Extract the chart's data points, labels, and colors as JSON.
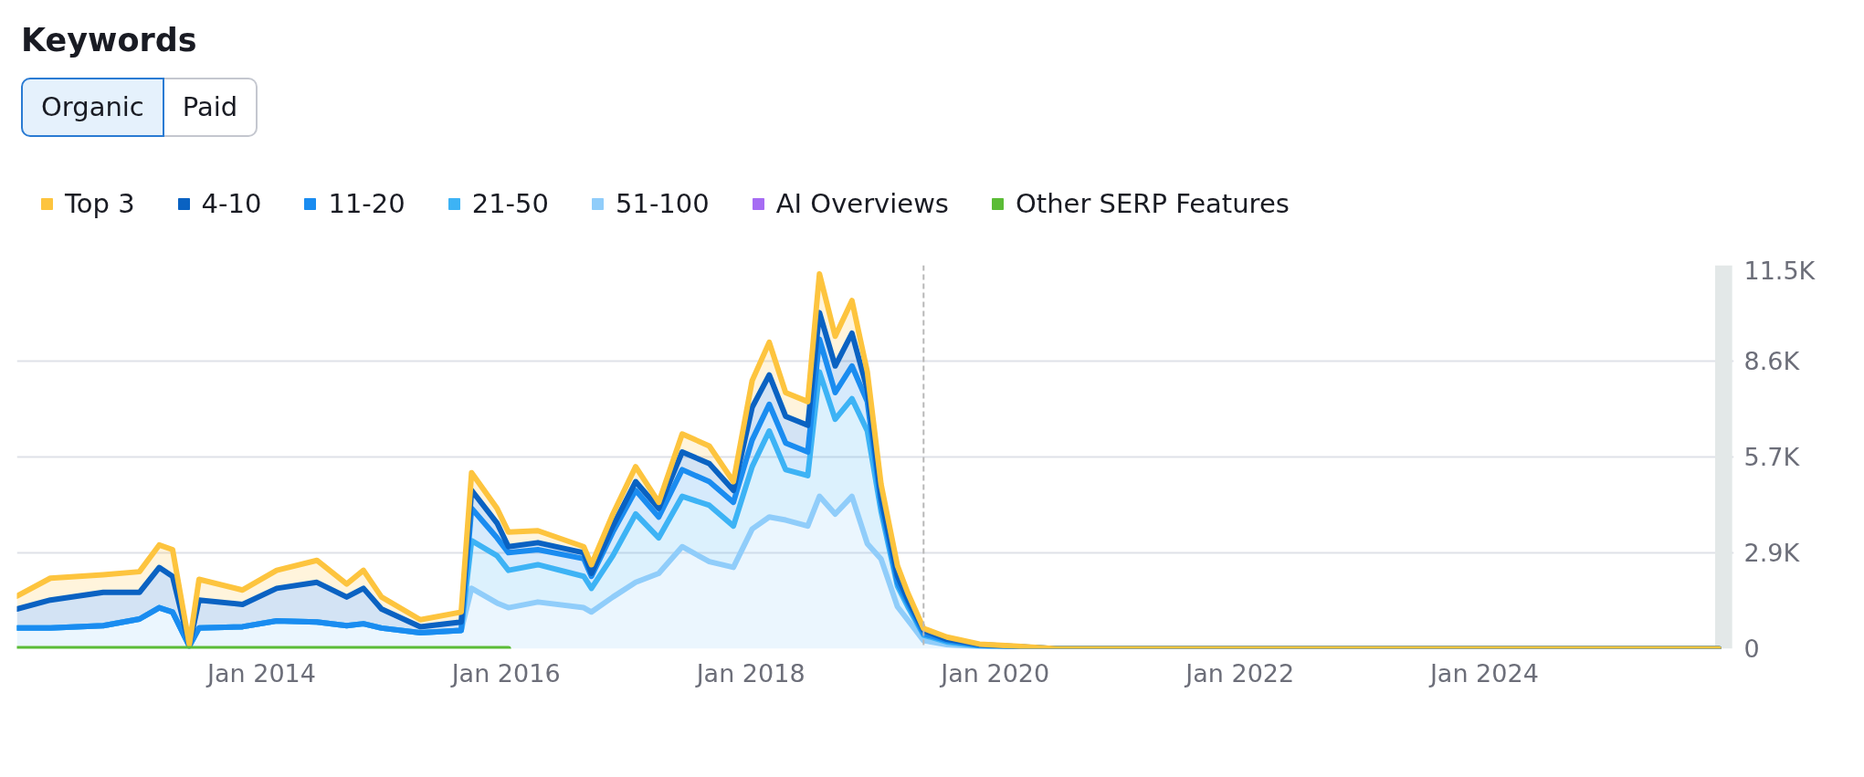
{
  "chart_data": {
    "type": "area",
    "title": "Keywords",
    "annotations": [
      "Organic",
      "Paid"
    ],
    "stacked": true,
    "legend": "top",
    "grid": "y",
    "line_style": "solid",
    "x": [
      "2012-01-01",
      "2012-04-10",
      "2012-09-15",
      "2013-01-01",
      "2013-03-01",
      "2013-04-10",
      "2013-05-30",
      "2013-06-28",
      "2013-11-05",
      "2014-02-15",
      "2014-06-15",
      "2014-09-12",
      "2014-11-01",
      "2014-12-25",
      "2015-04-20",
      "2015-08-20",
      "2015-09-20",
      "2015-12-05",
      "2016-01-08",
      "2016-04-05",
      "2016-08-20",
      "2016-09-12",
      "2016-11-15",
      "2017-01-22",
      "2017-04-01",
      "2017-06-10",
      "2017-08-30",
      "2017-11-10",
      "2018-01-05",
      "2018-02-25",
      "2018-04-15",
      "2018-06-20",
      "2018-07-25",
      "2018-09-10",
      "2018-10-30",
      "2018-12-15",
      "2019-01-25",
      "2019-03-15",
      "2019-04-15",
      "2019-06-01",
      "2019-08-10",
      "2019-11-15",
      "2020-02-25",
      "2020-07-01",
      "2025-12-01"
    ],
    "xlim": [
      "2012-01-01",
      "2026-01-15"
    ],
    "xticks": [
      {
        "value": "2014-01-01",
        "label": "Jan 2014"
      },
      {
        "value": "2016-01-01",
        "label": "Jan 2016"
      },
      {
        "value": "2018-01-01",
        "label": "Jan 2018"
      },
      {
        "value": "2020-01-01",
        "label": "Jan 2020"
      },
      {
        "value": "2022-01-01",
        "label": "Jan 2022"
      },
      {
        "value": "2024-01-01",
        "label": "Jan 2024"
      }
    ],
    "ylim": [
      0,
      11500
    ],
    "yticks": [
      0,
      {
        "value": 2875,
        "label": "2.9K"
      },
      {
        "value": 5750,
        "label": "5.7K"
      },
      {
        "value": 8625,
        "label": "8.6K"
      },
      {
        "value": 11500,
        "label": "11.5K"
      }
    ],
    "ref_lines": [
      {
        "axis": "x",
        "value": "2019-06-01",
        "color": "#b8b8b8",
        "line_style": "dashed"
      }
    ],
    "bands": [
      {
        "axis": "x",
        "from": "2025-11-20",
        "to": "2026-01-10",
        "color": "#e3e8e8"
      }
    ],
    "series": [
      {
        "name": "51-100",
        "color": "#90cdfa",
        "values": [
          620,
          620,
          690,
          890,
          1230,
          1100,
          80,
          620,
          660,
          835,
          800,
          690,
          750,
          620,
          480,
          550,
          1810,
          1370,
          1230,
          1400,
          1230,
          1100,
          1550,
          1990,
          2260,
          3060,
          2610,
          2440,
          3590,
          3950,
          3860,
          3680,
          4570,
          4040,
          4570,
          3150,
          2690,
          1260,
          860,
          245,
          120,
          60,
          40,
          0,
          0
        ]
      },
      {
        "name": "21-50",
        "color": "#3db3f5",
        "values": [
          0,
          0,
          0,
          0,
          0,
          0,
          0,
          0,
          0,
          0,
          0,
          0,
          0,
          0,
          0,
          0,
          1430,
          1420,
          1120,
          1120,
          940,
          710,
          1240,
          2050,
          1065,
          1510,
          1690,
          1240,
          1870,
          2580,
          1510,
          1510,
          3730,
          2840,
          2930,
          3380,
          1430,
          620,
          400,
          165,
          80,
          20,
          10,
          0,
          0
        ]
      },
      {
        "name": "11-20",
        "color": "#1a8cf0",
        "values": [
          0,
          0,
          0,
          0,
          0,
          0,
          0,
          0,
          0,
          0,
          0,
          0,
          0,
          0,
          0,
          0,
          970,
          535,
          530,
          450,
          530,
          360,
          710,
          710,
          625,
          800,
          710,
          710,
          800,
          800,
          800,
          710,
          980,
          800,
          980,
          880,
          200,
          100,
          110,
          40,
          45,
          20,
          10,
          0,
          0
        ]
      },
      {
        "name": "4-10",
        "color": "#0a62c2",
        "values": [
          570,
          840,
          1000,
          800,
          1205,
          1070,
          20,
          840,
          670,
          975,
          1190,
          860,
          1060,
          570,
          180,
          250,
          540,
          445,
          180,
          210,
          180,
          90,
          180,
          260,
          260,
          530,
          540,
          360,
          980,
          880,
          800,
          800,
          800,
          800,
          980,
          360,
          210,
          200,
          100,
          100,
          40,
          20,
          10,
          0,
          0
        ]
      },
      {
        "name": "Top 3",
        "color": "#fdc43e",
        "values": [
          390,
          655,
          530,
          620,
          675,
          800,
          24,
          620,
          430,
          540,
          660,
          390,
          540,
          360,
          210,
          300,
          530,
          440,
          440,
          360,
          180,
          260,
          360,
          450,
          180,
          540,
          530,
          260,
          800,
          980,
          710,
          710,
          1160,
          890,
          980,
          530,
          400,
          310,
          200,
          60,
          65,
          20,
          10,
          0,
          0
        ]
      },
      {
        "name": "AI Overviews",
        "type": "line",
        "color": "#a66cf3",
        "values": [
          null,
          null,
          null,
          null,
          null,
          null,
          null,
          null,
          null,
          null,
          null,
          null,
          null,
          null,
          null,
          null,
          null,
          null,
          null,
          null,
          null,
          null,
          null,
          null,
          null,
          null,
          null,
          null,
          null,
          null,
          null,
          null,
          null,
          null,
          null,
          null,
          null,
          null,
          null,
          null,
          null,
          null,
          null,
          null,
          null
        ]
      },
      {
        "name": "Other SERP Features",
        "type": "line",
        "color": "#5bbc36",
        "values": [
          0,
          0,
          0,
          0,
          0,
          0,
          0,
          0,
          0,
          0,
          0,
          0,
          0,
          0,
          0,
          0,
          0,
          0,
          0,
          null,
          null,
          null,
          null,
          null,
          null,
          null,
          null,
          null,
          null,
          null,
          null,
          null,
          null,
          null,
          null,
          null,
          null,
          null,
          null,
          null,
          null,
          null,
          null,
          null,
          null
        ]
      }
    ]
  }
}
